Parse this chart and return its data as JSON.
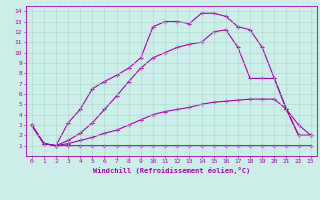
{
  "xlabel": "Windchill (Refroidissement éolien,°C)",
  "background_color": "#cceee8",
  "line_color": "#aa00aa",
  "xlim": [
    -0.5,
    23.5
  ],
  "ylim": [
    0,
    14.5
  ],
  "xticks": [
    0,
    1,
    2,
    3,
    4,
    5,
    6,
    7,
    8,
    9,
    10,
    11,
    12,
    13,
    14,
    15,
    16,
    17,
    18,
    19,
    20,
    21,
    22,
    23
  ],
  "yticks": [
    1,
    2,
    3,
    4,
    5,
    6,
    7,
    8,
    9,
    10,
    11,
    12,
    13,
    14
  ],
  "line1_x": [
    0,
    1,
    2,
    3,
    4,
    5,
    6,
    7,
    8,
    9,
    10,
    11,
    12,
    13,
    14,
    15,
    16,
    17,
    18,
    19,
    20,
    21,
    22,
    23
  ],
  "line1_y": [
    3.0,
    1.2,
    1.0,
    1.0,
    1.0,
    1.0,
    1.0,
    1.0,
    1.0,
    1.0,
    1.0,
    1.0,
    1.0,
    1.0,
    1.0,
    1.0,
    1.0,
    1.0,
    1.0,
    1.0,
    1.0,
    1.0,
    1.0,
    1.0
  ],
  "line2_x": [
    0,
    1,
    2,
    3,
    4,
    5,
    6,
    7,
    8,
    9,
    10,
    11,
    12,
    13,
    14,
    15,
    16,
    17,
    18,
    19,
    20,
    21,
    22,
    23
  ],
  "line2_y": [
    3.0,
    1.2,
    1.0,
    1.2,
    1.5,
    1.8,
    2.2,
    2.5,
    3.0,
    3.5,
    4.0,
    4.3,
    4.5,
    4.7,
    5.0,
    5.2,
    5.3,
    5.4,
    5.5,
    5.5,
    5.5,
    4.5,
    2.0,
    2.0
  ],
  "line3_x": [
    0,
    1,
    2,
    3,
    4,
    5,
    6,
    7,
    8,
    9,
    10,
    11,
    12,
    13,
    14,
    15,
    16,
    17,
    18,
    19,
    20,
    21,
    22,
    23
  ],
  "line3_y": [
    3.0,
    1.2,
    1.0,
    1.5,
    2.2,
    3.2,
    4.5,
    5.8,
    7.2,
    8.5,
    9.5,
    10.0,
    10.5,
    10.8,
    11.0,
    12.0,
    12.2,
    10.5,
    7.5,
    7.5,
    7.5,
    4.5,
    2.0,
    2.0
  ],
  "line4_x": [
    0,
    1,
    2,
    3,
    4,
    5,
    6,
    7,
    8,
    9,
    10,
    11,
    12,
    13,
    14,
    15,
    16,
    17,
    18,
    19,
    20,
    21,
    22,
    23
  ],
  "line4_y": [
    3.0,
    1.2,
    1.0,
    3.2,
    4.5,
    6.5,
    7.2,
    7.8,
    8.5,
    9.5,
    12.5,
    13.0,
    13.0,
    12.8,
    13.8,
    13.8,
    13.5,
    12.5,
    12.2,
    10.5,
    7.5,
    4.5,
    3.0,
    2.0
  ]
}
